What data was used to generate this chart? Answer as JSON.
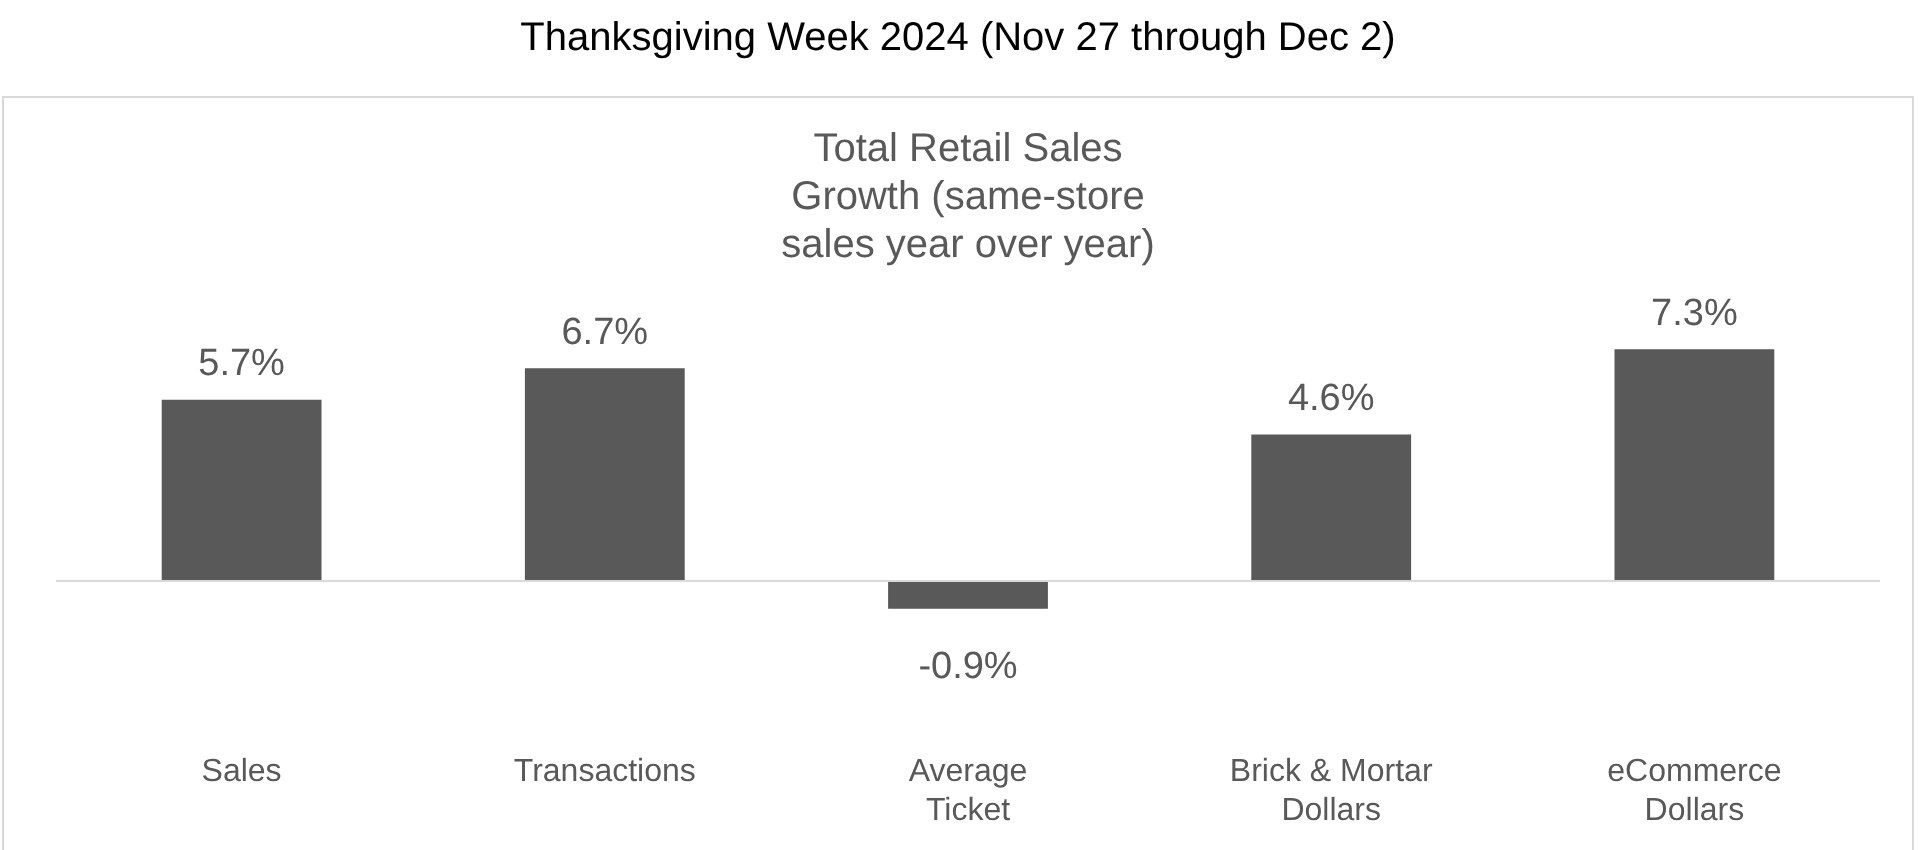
{
  "chart_data": {
    "type": "bar",
    "title": "Thanksgiving Week 2024 (Nov 27 through Dec 2)",
    "subtitle": "Total Retail Sales Growth (same-store sales year over year)",
    "categories": [
      "Sales",
      "Transactions",
      "Average Ticket",
      "Brick & Mortar Dollars",
      "eCommerce Dollars"
    ],
    "values": [
      5.7,
      6.7,
      -0.9,
      4.6,
      7.3
    ],
    "value_labels": [
      "5.7%",
      "6.7%",
      "-0.9%",
      "4.6%",
      "7.3%"
    ],
    "color": "#595959",
    "grid": false,
    "legend": false
  }
}
